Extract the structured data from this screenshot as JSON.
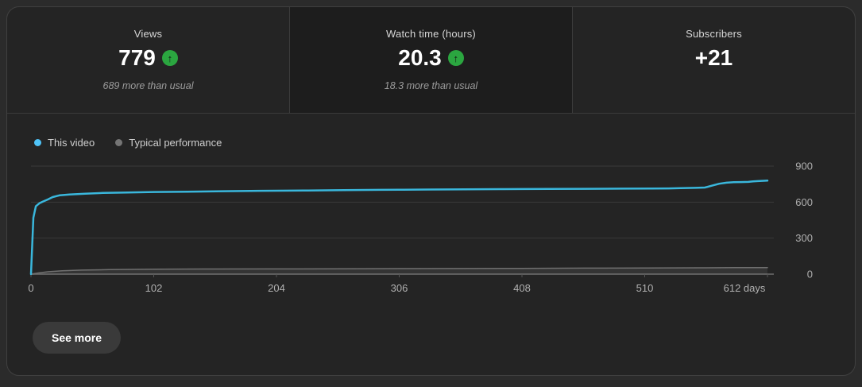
{
  "tabs": [
    {
      "label": "Views",
      "value": "779",
      "has_up_badge": true,
      "note": "689 more than usual",
      "selected": false
    },
    {
      "label": "Watch time (hours)",
      "value": "20.3",
      "has_up_badge": true,
      "note": "18.3 more than usual",
      "selected": true
    },
    {
      "label": "Subscribers",
      "value": "+21",
      "has_up_badge": false,
      "note": "",
      "selected": false
    }
  ],
  "legend": [
    {
      "label": "This video",
      "color": "#4fc3f7"
    },
    {
      "label": "Typical performance",
      "color": "#757575"
    }
  ],
  "buttons": {
    "see_more": "See more"
  },
  "colors": {
    "card_bg": "#242424",
    "selected_tab_bg": "#1d1d1d",
    "accent_blue": "#3ab7dc",
    "badge_green": "#2ba640",
    "gridline": "#3a3a3a",
    "baseline": "#5c5c5c",
    "axis_text": "#b0b0b0"
  },
  "chart_data": {
    "type": "line",
    "xlim": [
      0,
      612
    ],
    "ylim": [
      0,
      900
    ],
    "x_ticks": [
      {
        "v": 0,
        "label": "0"
      },
      {
        "v": 102,
        "label": "102"
      },
      {
        "v": 204,
        "label": "204"
      },
      {
        "v": 306,
        "label": "306"
      },
      {
        "v": 408,
        "label": "408"
      },
      {
        "v": 510,
        "label": "510"
      },
      {
        "v": 612,
        "label": "612 days"
      }
    ],
    "y_ticks": [
      {
        "v": 0,
        "label": "0"
      },
      {
        "v": 300,
        "label": "300"
      },
      {
        "v": 600,
        "label": "600"
      },
      {
        "v": 900,
        "label": "900"
      }
    ],
    "series": [
      {
        "name": "Typical performance",
        "color": "#707070",
        "width": 1.5,
        "fill": "rgba(150,150,150,0.15)",
        "points": [
          [
            0,
            0
          ],
          [
            6,
            10
          ],
          [
            14,
            20
          ],
          [
            26,
            28
          ],
          [
            42,
            34
          ],
          [
            65,
            38
          ],
          [
            102,
            41
          ],
          [
            150,
            43
          ],
          [
            204,
            44
          ],
          [
            260,
            45
          ],
          [
            306,
            46
          ],
          [
            360,
            47
          ],
          [
            408,
            48
          ],
          [
            460,
            50
          ],
          [
            510,
            51
          ],
          [
            555,
            53
          ],
          [
            585,
            54
          ],
          [
            612,
            55
          ]
        ]
      },
      {
        "name": "This video",
        "color": "#3ab7dc",
        "width": 2.5,
        "fill": null,
        "points": [
          [
            0,
            0
          ],
          [
            2,
            470
          ],
          [
            4,
            565
          ],
          [
            7,
            590
          ],
          [
            10,
            605
          ],
          [
            14,
            622
          ],
          [
            18,
            642
          ],
          [
            24,
            657
          ],
          [
            32,
            664
          ],
          [
            45,
            670
          ],
          [
            60,
            676
          ],
          [
            80,
            680
          ],
          [
            102,
            684
          ],
          [
            130,
            687
          ],
          [
            160,
            691
          ],
          [
            190,
            694
          ],
          [
            204,
            695
          ],
          [
            230,
            697
          ],
          [
            260,
            700
          ],
          [
            290,
            702
          ],
          [
            306,
            703
          ],
          [
            330,
            705
          ],
          [
            360,
            707
          ],
          [
            390,
            708
          ],
          [
            408,
            709
          ],
          [
            430,
            710
          ],
          [
            460,
            711
          ],
          [
            490,
            712
          ],
          [
            515,
            713
          ],
          [
            530,
            714
          ],
          [
            540,
            717
          ],
          [
            552,
            719
          ],
          [
            560,
            721
          ],
          [
            566,
            737
          ],
          [
            572,
            753
          ],
          [
            578,
            762
          ],
          [
            584,
            766
          ],
          [
            590,
            767
          ],
          [
            596,
            768
          ],
          [
            600,
            772
          ],
          [
            604,
            775
          ],
          [
            612,
            779
          ]
        ]
      }
    ]
  }
}
